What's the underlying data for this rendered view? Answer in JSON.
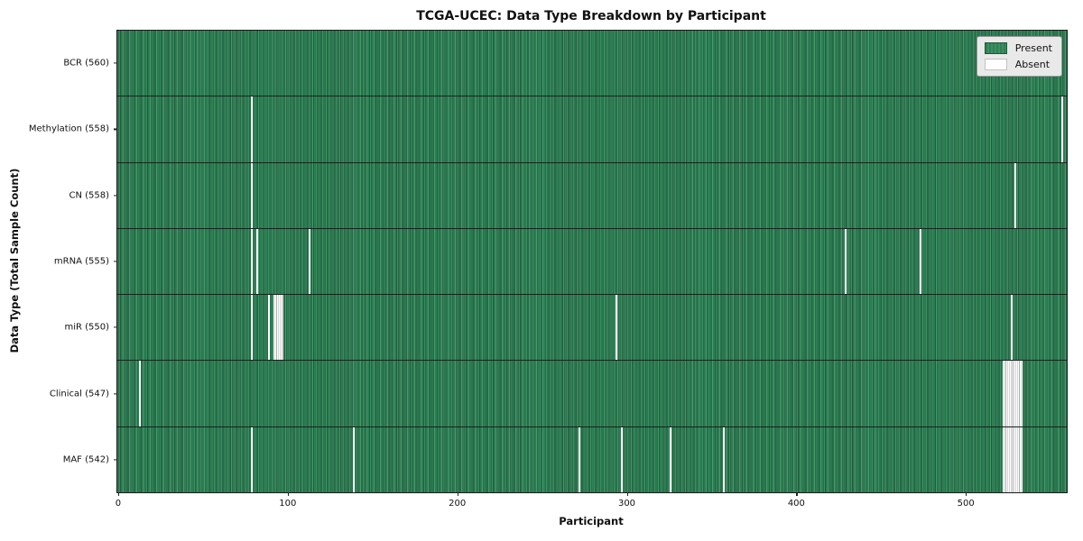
{
  "title": "TCGA-UCEC: Data Type Breakdown by Participant",
  "xlabel": "Participant",
  "ylabel": "Data Type (Total Sample Count)",
  "legend": {
    "present_label": "Present",
    "absent_label": "Absent"
  },
  "colors": {
    "present_green": "#2e8155",
    "present_green_dark": "#1e5c3b",
    "present_green_light": "#48996d",
    "absent_white": "#ffffff",
    "cluster_separator": "#adadad",
    "legend_bg": "#e9e9e9"
  },
  "chart_data": {
    "type": "heatmap",
    "title": "TCGA-UCEC: Data Type Breakdown by Participant",
    "xlabel": "Participant",
    "ylabel": "Data Type (Total Sample Count)",
    "legend_entries": [
      "Present",
      "Absent"
    ],
    "legend_position": "upper right",
    "n_participants": 560,
    "x_ticks": [
      0,
      100,
      200,
      300,
      400,
      500
    ],
    "xlim": [
      0,
      560
    ],
    "rows": [
      {
        "label": "BCR (560)",
        "present_count": 560,
        "absent_participants": []
      },
      {
        "label": "Methylation (558)",
        "present_count": 558,
        "absent_participants": [
          79,
          557
        ]
      },
      {
        "label": "CN (558)",
        "present_count": 558,
        "absent_participants": [
          79,
          529
        ]
      },
      {
        "label": "mRNA (555)",
        "present_count": 555,
        "absent_participants": [
          79,
          82,
          113,
          429,
          473
        ]
      },
      {
        "label": "miR (550)",
        "present_count": 550,
        "absent_participants": [
          79,
          89,
          92,
          93,
          94,
          95,
          96,
          97,
          294,
          527
        ]
      },
      {
        "label": "Clinical (547)",
        "present_count": 547,
        "absent_participants": [
          13,
          522,
          523,
          524,
          525,
          526,
          527,
          528,
          529,
          530,
          531,
          532,
          533
        ]
      },
      {
        "label": "MAF (542)",
        "present_count": 542,
        "absent_participants": [
          79,
          139,
          272,
          297,
          326,
          357,
          522,
          523,
          524,
          525,
          526,
          527,
          528,
          529,
          530,
          531,
          532,
          533
        ]
      }
    ]
  }
}
